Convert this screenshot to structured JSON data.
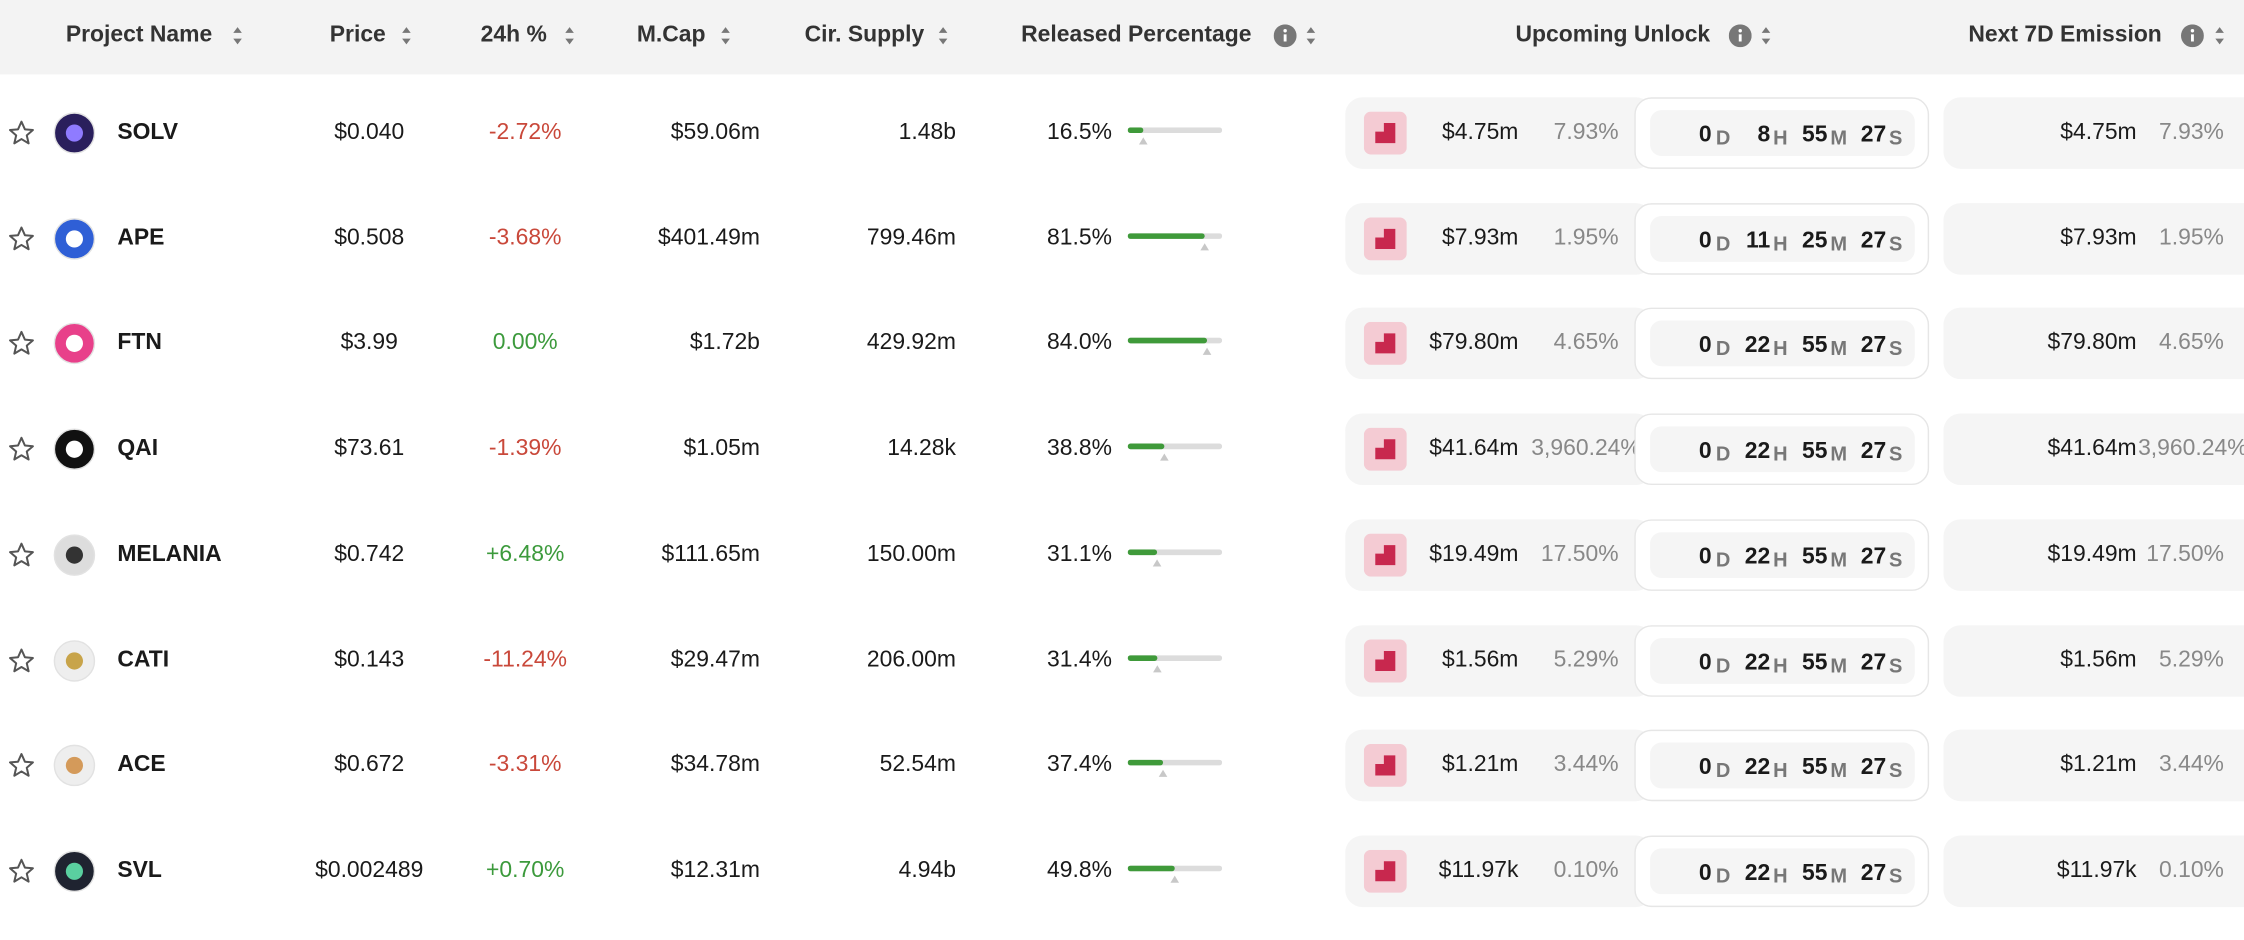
{
  "header": {
    "columns": [
      "Project Name",
      "Price",
      "24h %",
      "M.Cap",
      "Cir. Supply",
      "Released Percentage",
      "Upcoming Unlock",
      "Next 7D Emission"
    ]
  },
  "countdown_units": [
    "D",
    "H",
    "M",
    "S"
  ],
  "rows": [
    {
      "name": "SOLV",
      "price": "$0.040",
      "change": "-2.72%",
      "market_cap": "$59.06m",
      "supply": "1.48b",
      "released": "16.5%",
      "unlock_value": "$4.75m",
      "unlock_percent": "7.93%",
      "countdown": [
        0,
        8,
        55,
        27
      ],
      "emission_value": "$4.75m",
      "emission_percent": "7.93%"
    },
    {
      "name": "APE",
      "price": "$0.508",
      "change": "-3.68%",
      "market_cap": "$401.49m",
      "supply": "799.46m",
      "released": "81.5%",
      "unlock_value": "$7.93m",
      "unlock_percent": "1.95%",
      "countdown": [
        0,
        11,
        25,
        27
      ],
      "emission_value": "$7.93m",
      "emission_percent": "1.95%"
    },
    {
      "name": "FTN",
      "price": "$3.99",
      "change": "0.00%",
      "market_cap": "$1.72b",
      "supply": "429.92m",
      "released": "84.0%",
      "unlock_value": "$79.80m",
      "unlock_percent": "4.65%",
      "countdown": [
        0,
        22,
        55,
        27
      ],
      "emission_value": "$79.80m",
      "emission_percent": "4.65%"
    },
    {
      "name": "QAI",
      "price": "$73.61",
      "change": "-1.39%",
      "market_cap": "$1.05m",
      "supply": "14.28k",
      "released": "38.8%",
      "unlock_value": "$41.64m",
      "unlock_percent": "3,960.24%",
      "countdown": [
        0,
        22,
        55,
        27
      ],
      "emission_value": "$41.64m",
      "emission_percent": "3,960.24%"
    },
    {
      "name": "MELANIA",
      "price": "$0.742",
      "change": "+6.48%",
      "market_cap": "$111.65m",
      "supply": "150.00m",
      "released": "31.1%",
      "unlock_value": "$19.49m",
      "unlock_percent": "17.50%",
      "countdown": [
        0,
        22,
        55,
        27
      ],
      "emission_value": "$19.49m",
      "emission_percent": "17.50%"
    },
    {
      "name": "CATI",
      "price": "$0.143",
      "change": "-11.24%",
      "market_cap": "$29.47m",
      "supply": "206.00m",
      "released": "31.4%",
      "unlock_value": "$1.56m",
      "unlock_percent": "5.29%",
      "countdown": [
        0,
        22,
        55,
        27
      ],
      "emission_value": "$1.56m",
      "emission_percent": "5.29%"
    },
    {
      "name": "ACE",
      "price": "$0.672",
      "change": "-3.31%",
      "market_cap": "$34.78m",
      "supply": "52.54m",
      "released": "37.4%",
      "unlock_value": "$1.21m",
      "unlock_percent": "3.44%",
      "countdown": [
        0,
        22,
        55,
        27
      ],
      "emission_value": "$1.21m",
      "emission_percent": "3.44%"
    },
    {
      "name": "SVL",
      "price": "$0.002489",
      "change": "+0.70%",
      "market_cap": "$12.31m",
      "supply": "4.94b",
      "released": "49.8%",
      "unlock_value": "$11.97k",
      "unlock_percent": "0.10%",
      "countdown": [
        0,
        22,
        55,
        27
      ],
      "emission_value": "$11.97k",
      "emission_percent": "0.10%"
    }
  ]
}
